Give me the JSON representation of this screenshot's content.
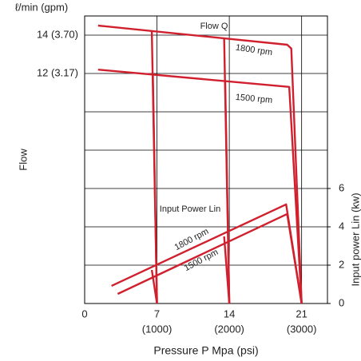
{
  "chart_data": {
    "type": "line",
    "y_unit_label": "ℓ/min (gpm)",
    "ylabel": "Flow",
    "y2label": "Input power Lin (kw)",
    "xlabel": "Pressure P Mpa (psi)",
    "xlim": [
      0,
      23.5
    ],
    "xticks": [
      0,
      7,
      14,
      21
    ],
    "x_secondary_labels": [
      "(1000)",
      "(2000)",
      "(3000)"
    ],
    "ylim": [
      0,
      15
    ],
    "yticks": [
      {
        "value": 2,
        "label": null
      },
      {
        "value": 4,
        "label": null
      },
      {
        "value": 6,
        "label": null
      },
      {
        "value": 8,
        "label": null
      },
      {
        "value": 10,
        "label": null
      },
      {
        "value": 12,
        "label": "12 (3.17)"
      },
      {
        "value": 14,
        "label": "14 (3.70)"
      }
    ],
    "y2lim": [
      0,
      15
    ],
    "y2ticks": [
      0,
      2,
      4,
      6
    ],
    "grid": true,
    "color": "#d0202e",
    "series": [
      {
        "x": [
          1.3,
          19.6,
          20.0,
          21
        ],
        "values": [
          14.5,
          13.5,
          13.3,
          0
        ]
      },
      {
        "x": [
          6.5,
          7
        ],
        "values": [
          14.2,
          0
        ]
      },
      {
        "x": [
          13.5,
          14
        ],
        "values": [
          13.85,
          0
        ]
      },
      {
        "x": [
          1.3,
          19.8,
          21
        ],
        "values": [
          12.2,
          11.3,
          0
        ]
      },
      {
        "x": [
          6.6,
          7
        ],
        "values": [
          12.0,
          0
        ]
      },
      {
        "x": [
          13.6,
          14
        ],
        "values": [
          11.6,
          0
        ]
      },
      {
        "x": [
          2.6,
          19.5,
          21
        ],
        "values": [
          0.92,
          5.17,
          0
        ],
        "axis": "y2"
      },
      {
        "x": [
          6.5,
          7
        ],
        "values": [
          1.75,
          0
        ],
        "axis": "y2"
      },
      {
        "x": [
          13.5,
          14
        ],
        "values": [
          3.5,
          0
        ],
        "axis": "y2"
      },
      {
        "x": [
          3.2,
          19.6,
          21
        ],
        "values": [
          0.5,
          4.67,
          0
        ],
        "axis": "y2"
      }
    ],
    "annotations": [
      "Flow Q",
      "1800 rpm",
      "1500 rpm",
      "Input Power Lin",
      "1800 rpm",
      "1500 rpm"
    ]
  }
}
